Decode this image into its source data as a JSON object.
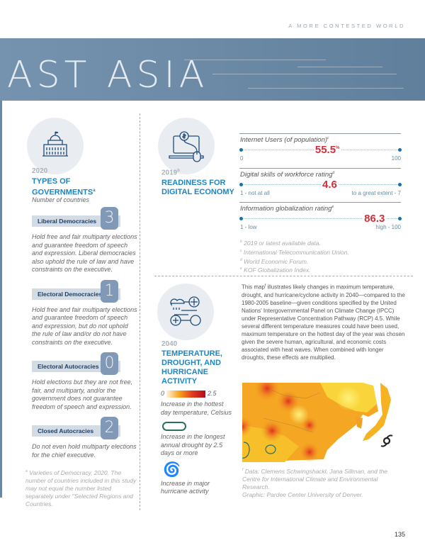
{
  "header": {
    "running_title": "A MORE CONTESTED WORLD",
    "section_title": "AST ASIA"
  },
  "governments": {
    "year": "2020",
    "title_line1": "TYPES OF",
    "title_line2": "GOVERNMENTS",
    "title_sup": "a",
    "subtitle": "Number of countries",
    "categories": [
      {
        "label": "Liberal Democracies",
        "count": "3",
        "description": "Hold free and fair multiparty elections and guarantee freedom of speech and expression. Liberal democracies also uphold the rule of law and have constraints on the executive."
      },
      {
        "label": "Electoral Democracies",
        "count": "1",
        "description": "Hold free and fair multiparty elections and guarantee freedom of speech and expression, but do not uphold the rule of law and/or do not have constraints on the executive."
      },
      {
        "label": "Electoral Autocracies",
        "count": "0",
        "description": "Hold elections but they are not free, fair, and multiparty, and/or the government does not guarantee freedom of speech and expression."
      },
      {
        "label": "Closed Autocracies",
        "count": "2",
        "description": "Do not even hold multiparty elections for the chief executive."
      }
    ],
    "footnote_marker": "a",
    "footnote": "Varieties of Democracy, 2020. The number of countries included in this study may not equal the number listed separately under \"Selected Regions and Countries."
  },
  "digital": {
    "year": "2019",
    "year_sup": "b",
    "title_line1": "READINESS FOR",
    "title_line2": "DIGITAL ECONOMY",
    "metrics": [
      {
        "label": "Internet Users (of population)",
        "sup": "c",
        "value": "55.5",
        "unit": "%",
        "fraction": 0.555,
        "min_label": "0",
        "max_label": "100"
      },
      {
        "label": "Digital skills of workforce rating",
        "sup": "d",
        "value": "4.6",
        "unit": "",
        "fraction": 0.6,
        "min_label": "1 - not at all",
        "max_label": "to a great extent - 7"
      },
      {
        "label": "Information globalization rating",
        "sup": "e",
        "value": "86.3",
        "unit": "",
        "fraction": 0.863,
        "min_label": "1 - low",
        "max_label": "high - 100"
      }
    ],
    "footnotes": [
      {
        "m": "b",
        "t": "2019 or latest available data."
      },
      {
        "m": "c",
        "t": "International Telecommunication Union."
      },
      {
        "m": "d",
        "t": "World Economic Forum."
      },
      {
        "m": "e",
        "t": "KOF Globalization Index."
      }
    ]
  },
  "climate": {
    "year": "2040",
    "title": [
      "TEMPERATURE,",
      "DROUGHT, AND",
      "HURRICANE",
      "ACTIVITY"
    ],
    "legend": {
      "scale_min": "0",
      "scale_max": "2.5",
      "scale_label": "Increase in the hottest day temperature, Celsius",
      "drought_label": "Increase in the longest annual drought by 2.5 days or more",
      "hurricane_label": "Increase in major hurricane activity"
    },
    "body_pre": "This map",
    "body_sup": "f",
    "body": " illustrates likely changes in maximum temperature, drought, and hurricane/cyclone activity in 2040—compared to the 1980-2005 baseline—given conditions specified by the United Nations' Intergovernmental Panel on Climate Change (IPCC) under Representative Concentration Pathway (RCP) 4.5. While several different temperature measures could have been used, maximum temperature on the hottest day of the year was chosen given the severe human, agricultural, and economic costs associated with heat waves. When combined with longer droughts, these effects are multiplied.",
    "source_marker": "f",
    "source": "Data: Clemens Schwingshackl, Jana Sillman, and the Centre for International Climate and Environmental Research.",
    "graphic_credit": "Graphic: Pardee Center University of Denver.",
    "colors": {
      "low": "#fde9b0",
      "mid": "#f7a21b",
      "high": "#c3101e",
      "drought": "#2a6f5e"
    }
  },
  "page_number": "135"
}
